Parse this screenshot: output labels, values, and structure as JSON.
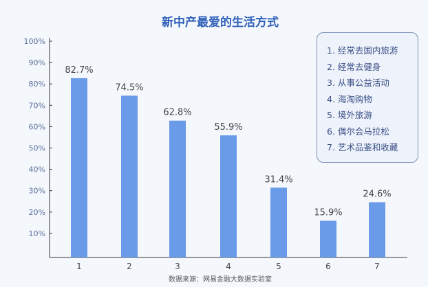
{
  "chart_data": {
    "type": "bar",
    "title": "新中产最爱的生活方式",
    "categories": [
      "1",
      "2",
      "3",
      "4",
      "5",
      "6",
      "7"
    ],
    "values": [
      82.7,
      74.5,
      62.8,
      55.9,
      31.4,
      15.9,
      24.6
    ],
    "data_labels": [
      "82.7%",
      "74.5%",
      "62.8%",
      "55.9%",
      "31.4%",
      "15.9%",
      "24.6%"
    ],
    "yticks": [
      "10%",
      "20%",
      "30%",
      "40%",
      "50%",
      "60%",
      "70%",
      "80%",
      "90%",
      "100%"
    ],
    "ylim": [
      0,
      100
    ],
    "grid": false,
    "legend_position": "top-right",
    "legend": [
      "1. 经常去国内旅游",
      "2. 经常去健身",
      "3. 从事公益活动",
      "4. 海淘购物",
      "5. 境外旅游",
      "6. 偶尔会马拉松",
      "7. 艺术品鉴和收藏"
    ],
    "source": "数据来源：网易金融大数据实验室",
    "colors": {
      "bar": "#6a9be8",
      "title": "#2f5fb8",
      "text": "#5a6e99"
    }
  }
}
